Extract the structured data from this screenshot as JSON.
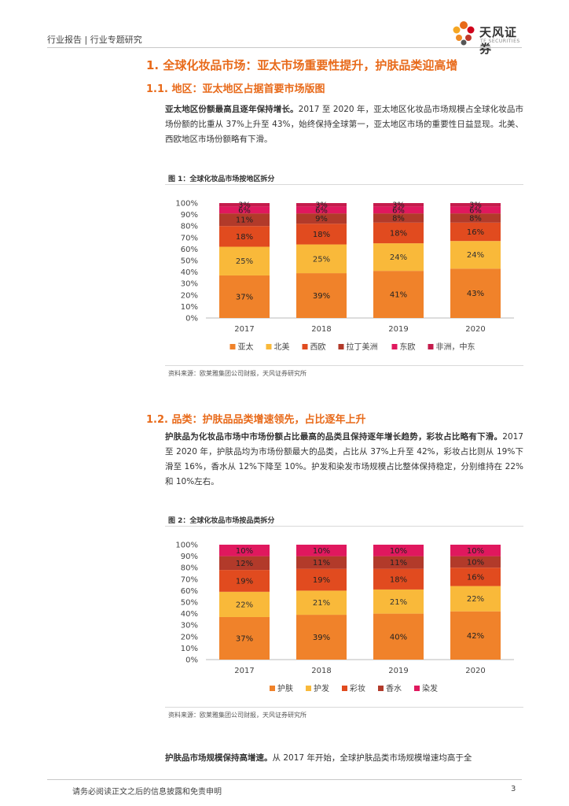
{
  "header": {
    "breadcrumb": "行业报告 | 行业专题研究",
    "logo_text": "天风证券",
    "logo_subtext": "TF SECURITIES"
  },
  "section1": {
    "title": "1. 全球化妆品市场：亚太市场重要性提升，护肤品类迎高增",
    "sub1_title": "1.1. 地区：亚太地区占据首要市场版图",
    "sub1_para_bold": "亚太地区份额最高且逐年保持增长。",
    "sub1_para_rest": "2017 至 2020 年，亚太地区化妆品市场规模占全球化妆品市场份额的比重从 37%上升至 43%，始终保持全球第一，亚太地区市场的重要性日益显现。北美、西欧地区市场份额略有下滑。",
    "sub2_title": "1.2. 品类：护肤品品类增速领先，占比逐年上升",
    "sub2_para_bold": "护肤品为化妆品市场中市场份额占比最高的品类且保持逐年增长趋势，彩妆占比略有下滑。",
    "sub2_para_rest": "2017 至 2020 年，护肤品均为市场份额最大的品类，占比从 37%上升至 42%，彩妆占比则从 19%下滑至 16%，香水从 12%下降至 10%。护发和染发市场规模占比整体保持稳定，分别维持在 22%和 10%左右。",
    "sub3_para_bold": "护肤品市场规模保持高增速。",
    "sub3_para_rest": "从 2017 年开始，全球护肤品类市场规模增速均高于全"
  },
  "figure1": {
    "title": "图 1：全球化妆品市场按地区拆分",
    "source": "资料来源：欧莱雅集团公司财报，天风证券研究所"
  },
  "figure2": {
    "title": "图 2：全球化妆品市场按品类拆分",
    "source": "资料来源：欧莱雅集团公司财报，天风证券研究所"
  },
  "footer": {
    "disclaimer": "请务必阅读正文之后的信息披露和免责申明",
    "page": "3"
  },
  "chart_data": [
    {
      "type": "bar",
      "stacked": true,
      "categories": [
        "2017",
        "2018",
        "2019",
        "2020"
      ],
      "y_ticks": [
        "0%",
        "10%",
        "20%",
        "30%",
        "40%",
        "50%",
        "60%",
        "70%",
        "80%",
        "90%",
        "100%"
      ],
      "ylim": [
        0,
        100
      ],
      "legend_position": "bottom",
      "series": [
        {
          "name": "亚太",
          "color": "#f0822a",
          "values": [
            37,
            39,
            41,
            43
          ]
        },
        {
          "name": "北美",
          "color": "#f9b93a",
          "values": [
            25,
            25,
            24,
            24
          ]
        },
        {
          "name": "西欧",
          "color": "#e14b1f",
          "values": [
            18,
            18,
            18,
            16
          ]
        },
        {
          "name": "拉丁美洲",
          "color": "#b23a2a",
          "values": [
            11,
            9,
            8,
            8
          ]
        },
        {
          "name": "东欧",
          "color": "#e0185e",
          "values": [
            6,
            6,
            6,
            6
          ]
        },
        {
          "name": "非洲，中东",
          "color": "#c41c4c",
          "values": [
            3,
            3,
            3,
            3
          ]
        }
      ],
      "labels": [
        [
          "37%",
          "39%",
          "41%",
          "43%"
        ],
        [
          "25%",
          "25%",
          "24%",
          "24%"
        ],
        [
          "18%",
          "18%",
          "18%",
          "16%"
        ],
        [
          "11%",
          "9%",
          "8%",
          "8%"
        ],
        [
          "6%",
          "6%",
          "6%",
          "6%"
        ],
        [
          "3%",
          "3%",
          "3%",
          "3%"
        ]
      ]
    },
    {
      "type": "bar",
      "stacked": true,
      "categories": [
        "2017",
        "2018",
        "2019",
        "2020"
      ],
      "y_ticks": [
        "0%",
        "10%",
        "20%",
        "30%",
        "40%",
        "50%",
        "60%",
        "70%",
        "80%",
        "90%",
        "100%"
      ],
      "ylim": [
        0,
        100
      ],
      "legend_position": "bottom",
      "series": [
        {
          "name": "护肤",
          "color": "#f0822a",
          "values": [
            37,
            39,
            40,
            42
          ]
        },
        {
          "name": "护发",
          "color": "#f9b93a",
          "values": [
            22,
            21,
            21,
            22
          ]
        },
        {
          "name": "彩妆",
          "color": "#e14b1f",
          "values": [
            19,
            19,
            18,
            16
          ]
        },
        {
          "name": "香水",
          "color": "#b23a2a",
          "values": [
            12,
            11,
            11,
            10
          ]
        },
        {
          "name": "染发",
          "color": "#e0185e",
          "values": [
            10,
            10,
            10,
            10
          ]
        }
      ],
      "labels": [
        [
          "37%",
          "39%",
          "40%",
          "42%"
        ],
        [
          "22%",
          "21%",
          "21%",
          "22%"
        ],
        [
          "19%",
          "19%",
          "18%",
          "16%"
        ],
        [
          "12%",
          "11%",
          "11%",
          "10%"
        ],
        [
          "10%",
          "10%",
          "10%",
          "10%"
        ]
      ]
    }
  ]
}
